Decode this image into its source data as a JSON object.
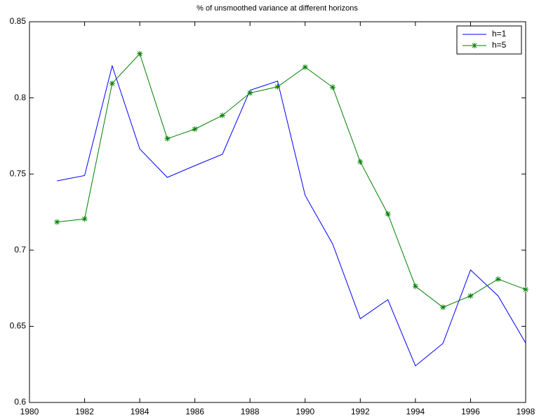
{
  "chart_data": {
    "type": "line",
    "title": "% of unsmoothed variance at different horizons",
    "x": [
      1981,
      1982,
      1983,
      1984,
      1985,
      1986,
      1987,
      1988,
      1989,
      1990,
      1991,
      1992,
      1993,
      1994,
      1995,
      1996,
      1997,
      1998
    ],
    "series": [
      {
        "name": "h=1",
        "color": "#0000ff",
        "marker": null,
        "values": [
          0.7455,
          0.749,
          0.821,
          0.7665,
          0.7478,
          0.7555,
          0.763,
          0.805,
          0.811,
          0.736,
          0.704,
          0.655,
          0.6675,
          0.624,
          0.6388,
          0.687,
          0.67,
          0.639
        ]
      },
      {
        "name": "h=5",
        "color": "#007f00",
        "marker": "*",
        "values": [
          0.7185,
          0.7205,
          0.8095,
          0.829,
          0.7732,
          0.7795,
          0.7885,
          0.8032,
          0.8073,
          0.8202,
          0.807,
          0.758,
          0.7238,
          0.6763,
          0.6625,
          0.67,
          0.681,
          0.6742
        ]
      }
    ],
    "xlim": [
      1980,
      1998
    ],
    "xticks": [
      1980,
      1982,
      1984,
      1986,
      1988,
      1990,
      1992,
      1994,
      1996,
      1998
    ],
    "ylim": [
      0.6,
      0.85
    ],
    "yticks": [
      0.6,
      0.65,
      0.7,
      0.75,
      0.8,
      0.85
    ],
    "grid": false,
    "legend": "upper right"
  }
}
